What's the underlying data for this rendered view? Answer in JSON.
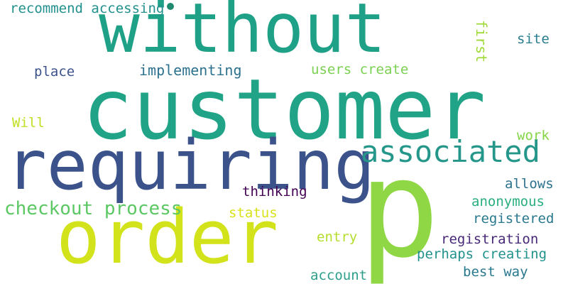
{
  "words": [
    {
      "text": "without",
      "color": "#1fa187"
    },
    {
      "text": "customer",
      "color": "#20a386"
    },
    {
      "text": "requiring",
      "color": "#3b528b"
    },
    {
      "text": "order",
      "color": "#d2e21b"
    },
    {
      "text": "p",
      "color": "#8fd744"
    },
    {
      "text": "associated",
      "color": "#25968a"
    },
    {
      "text": "checkout process",
      "color": "#5cc863"
    },
    {
      "text": "recommend accessing",
      "color": "#21908d"
    },
    {
      "text": "implementing",
      "color": "#2c728e"
    },
    {
      "text": "users create",
      "color": "#7ad151"
    },
    {
      "text": "place",
      "color": "#3b528b"
    },
    {
      "text": "first",
      "color": "#a0da39"
    },
    {
      "text": "site",
      "color": "#287d8e"
    },
    {
      "text": "Will",
      "color": "#c2df23"
    },
    {
      "text": "work",
      "color": "#86d549"
    },
    {
      "text": "thinking",
      "color": "#440154"
    },
    {
      "text": "allows",
      "color": "#2c728e"
    },
    {
      "text": "anonymous",
      "color": "#29af7f"
    },
    {
      "text": "status",
      "color": "#d8e219"
    },
    {
      "text": "registered",
      "color": "#2a788e"
    },
    {
      "text": "entry",
      "color": "#b5de2b"
    },
    {
      "text": "registration",
      "color": "#482878"
    },
    {
      "text": "perhaps creating",
      "color": "#21918c"
    },
    {
      "text": "best way",
      "color": "#2a788e"
    },
    {
      "text": "account",
      "color": "#2e9f8a"
    }
  ]
}
